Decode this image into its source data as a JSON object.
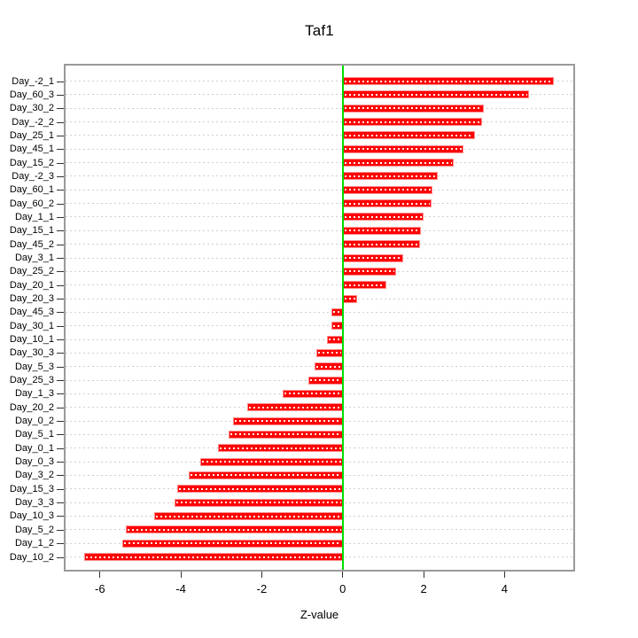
{
  "chart_data": {
    "type": "bar",
    "orientation": "horizontal",
    "title": "Taf1",
    "xlabel": "Z-value",
    "ylabel": "",
    "grid": true,
    "legend_position": "none",
    "xlim": [
      -6.85,
      5.7
    ],
    "xticks": [
      -6,
      -4,
      -2,
      0,
      2,
      4
    ],
    "categories": [
      "Day_-2_1",
      "Day_60_3",
      "Day_30_2",
      "Day_-2_2",
      "Day_25_1",
      "Day_45_1",
      "Day_15_2",
      "Day_-2_3",
      "Day_60_1",
      "Day_60_2",
      "Day_1_1",
      "Day_15_1",
      "Day_45_2",
      "Day_3_1",
      "Day_25_2",
      "Day_20_1",
      "Day_20_3",
      "Day_45_3",
      "Day_30_1",
      "Day_10_1",
      "Day_30_3",
      "Day_5_3",
      "Day_25_3",
      "Day_1_3",
      "Day_20_2",
      "Day_0_2",
      "Day_5_1",
      "Day_0_1",
      "Day_0_3",
      "Day_3_2",
      "Day_15_3",
      "Day_3_3",
      "Day_10_3",
      "Day_5_2",
      "Day_1_2",
      "Day_10_2"
    ],
    "values": [
      5.22,
      4.6,
      3.49,
      3.44,
      3.26,
      2.98,
      2.74,
      2.34,
      2.22,
      2.2,
      2.0,
      1.94,
      1.91,
      1.49,
      1.33,
      1.08,
      0.35,
      -0.28,
      -0.29,
      -0.4,
      -0.65,
      -0.69,
      -0.86,
      -1.49,
      -2.36,
      -2.71,
      -2.82,
      -3.08,
      -3.53,
      -3.8,
      -4.09,
      -4.16,
      -4.66,
      -5.37,
      -5.44,
      -6.39
    ],
    "colors": {
      "bar_fill": "#ff0000",
      "bar_edge": "#ff8c8c",
      "bar_hatch": "#ffffff",
      "zero_line": "#00dd00",
      "grid_line": "#cfcfcf",
      "plot_border": "#999999",
      "text": "#000000"
    }
  }
}
